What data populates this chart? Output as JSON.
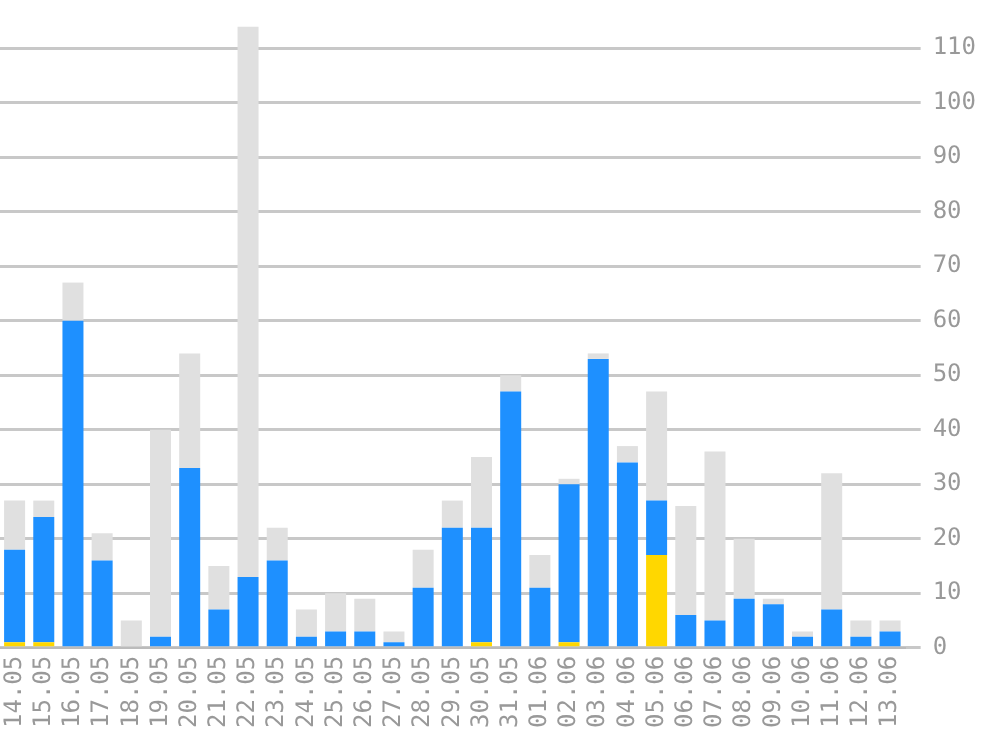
{
  "chart_data": {
    "type": "bar",
    "stacked": true,
    "grid": "y",
    "legend": false,
    "categories": [
      "14.05",
      "15.05",
      "16.05",
      "17.05",
      "18.05",
      "19.05",
      "20.05",
      "21.05",
      "22.05",
      "23.05",
      "24.05",
      "25.05",
      "26.05",
      "27.05",
      "28.05",
      "29.05",
      "30.05",
      "31.05",
      "01.06",
      "02.06",
      "03.06",
      "04.06",
      "05.06",
      "06.06",
      "07.06",
      "08.06",
      "09.06",
      "10.06",
      "11.06",
      "12.06",
      "13.06"
    ],
    "series": [
      {
        "color": "#ffd700",
        "values": [
          1,
          1,
          0,
          0,
          0,
          0,
          0,
          0,
          0,
          0,
          0,
          0,
          0,
          0,
          0,
          0,
          1,
          0,
          0,
          1,
          0,
          0,
          17,
          0,
          0,
          0,
          0,
          0,
          0,
          0,
          0
        ]
      },
      {
        "color": "#1e90ff",
        "values": [
          17,
          23,
          60,
          16,
          0,
          2,
          33,
          7,
          13,
          16,
          2,
          3,
          3,
          1,
          11,
          22,
          21,
          47,
          11,
          29,
          53,
          34,
          10,
          6,
          5,
          9,
          8,
          2,
          7,
          2,
          3
        ]
      },
      {
        "color": "#e0e0e0",
        "values": [
          9,
          3,
          7,
          5,
          5,
          38,
          21,
          8,
          101,
          6,
          5,
          7,
          6,
          2,
          7,
          5,
          13,
          3,
          6,
          1,
          1,
          3,
          20,
          20,
          31,
          11,
          1,
          1,
          25,
          3,
          2
        ]
      }
    ],
    "ylim": [
      0,
      114
    ],
    "yticks": [
      0,
      10,
      20,
      30,
      40,
      50,
      60,
      70,
      80,
      90,
      100,
      110
    ]
  }
}
